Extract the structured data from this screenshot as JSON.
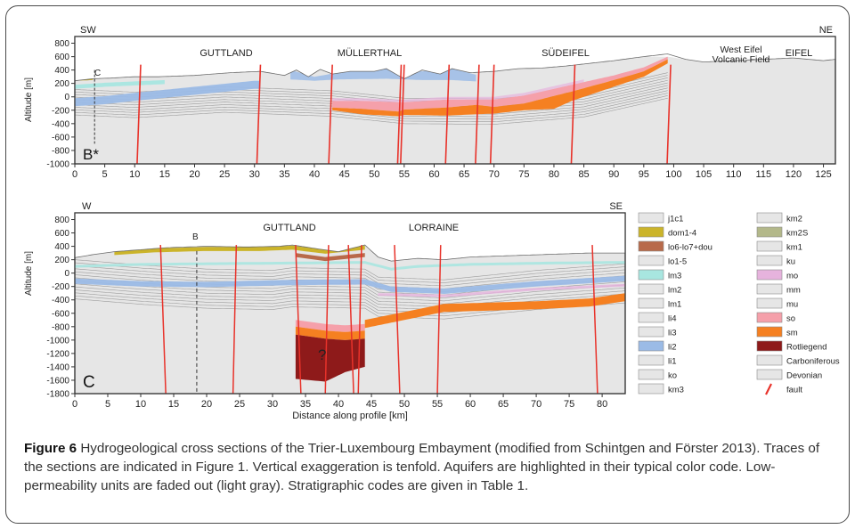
{
  "upper": {
    "section_letter": "B*",
    "corner_left": "SW",
    "corner_right": "NE",
    "trace_marker": "C",
    "region_labels": [
      "GUTTLAND",
      "MÜLLERTHAL",
      "SÜDEIFEL",
      "West Eifel Volcanic Field",
      "EIFEL"
    ],
    "y_axis_label": "Altitude [m]",
    "y_ticks": [
      800,
      600,
      400,
      200,
      0,
      -200,
      -400,
      -600,
      -800,
      -1000
    ],
    "x_ticks": [
      0,
      5,
      10,
      15,
      20,
      25,
      30,
      35,
      40,
      45,
      50,
      55,
      60,
      65,
      70,
      75,
      80,
      85,
      90,
      95,
      100,
      105,
      110,
      115,
      120,
      125
    ],
    "x_range_km": [
      0,
      127
    ],
    "y_range_m": [
      -1000,
      900
    ],
    "fault_positions_km": [
      11,
      31,
      43,
      54.5,
      55,
      62.5,
      67.5,
      70,
      83.5,
      99.5
    ]
  },
  "lower": {
    "section_letter": "C",
    "corner_left": "W",
    "corner_right": "SE",
    "trace_marker": "B",
    "region_labels": [
      "GUTTLAND",
      "LORRAINE"
    ],
    "unknown_marker": "?",
    "y_axis_label": "Altitude [m]",
    "x_axis_label": "Distance along profile [km]",
    "y_ticks": [
      800,
      600,
      400,
      200,
      0,
      -200,
      -400,
      -600,
      -800,
      -1000,
      -1200,
      -1400,
      -1600,
      -1800
    ],
    "x_ticks": [
      0,
      5,
      10,
      15,
      20,
      25,
      30,
      35,
      40,
      45,
      50,
      55,
      60,
      65,
      70,
      75,
      80
    ],
    "x_range_km": [
      0,
      83.5
    ],
    "y_range_m": [
      -1800,
      900
    ],
    "fault_positions_km": [
      13,
      24.5,
      33.5,
      38.5,
      41.5,
      43.5,
      48.5,
      55.5,
      78.5
    ]
  },
  "legend": {
    "items": [
      {
        "code": "j1c1",
        "color": "#e6e6e6"
      },
      {
        "code": "dom1-4",
        "color": "#cbb42a"
      },
      {
        "code": "lo6-lo7+dou",
        "color": "#b86a4a"
      },
      {
        "code": "lo1-5",
        "color": "#e6e6e6"
      },
      {
        "code": "lm3",
        "color": "#a8e6e0"
      },
      {
        "code": "lm2",
        "color": "#e6e6e6"
      },
      {
        "code": "lm1",
        "color": "#e6e6e6"
      },
      {
        "code": "li4",
        "color": "#e6e6e6"
      },
      {
        "code": "li3",
        "color": "#e6e6e6"
      },
      {
        "code": "li2",
        "color": "#9bbbe6"
      },
      {
        "code": "li1",
        "color": "#e6e6e6"
      },
      {
        "code": "ko",
        "color": "#e6e6e6"
      },
      {
        "code": "km3",
        "color": "#e6e6e6"
      },
      {
        "code": "km2",
        "color": "#e6e6e6"
      },
      {
        "code": "km2S",
        "color": "#b3b88a"
      },
      {
        "code": "km1",
        "color": "#e6e6e6"
      },
      {
        "code": "ku",
        "color": "#e6e6e6"
      },
      {
        "code": "mo",
        "color": "#e6b3dd"
      },
      {
        "code": "mm",
        "color": "#e6e6e6"
      },
      {
        "code": "mu",
        "color": "#e6e6e6"
      },
      {
        "code": "so",
        "color": "#f5a0aa"
      },
      {
        "code": "sm",
        "color": "#f58021"
      },
      {
        "code": "Rotliegend",
        "color": "#8e1a1a"
      },
      {
        "code": "Carboniferous",
        "color": "#e6e6e6"
      },
      {
        "code": "Devonian",
        "color": "#e6e6e6"
      },
      {
        "code": "fault",
        "color": "#e8322a"
      }
    ]
  },
  "caption": {
    "label": "Figure 6",
    "text": "Hydrogeological cross sections of the Trier-Luxembourg Embayment (modified from Schintgen and Förster 2013). Traces of the sections are indicated in Figure 1. Vertical exaggeration is tenfold. Aquifers are highlighted in their typical color code. Low-permeability units are faded out (light gray). Stratigraphic codes are given in Table 1."
  },
  "colors": {
    "background_rock": "#e6e6e6",
    "layer_line": "#8a8a8a",
    "fault": "#e8322a",
    "sm": "#f58021",
    "so": "#f5a0aa",
    "li2": "#9bbbe6",
    "lm3": "#a8e6e0",
    "dom": "#cbb42a",
    "rotliegend": "#8e1a1a"
  }
}
